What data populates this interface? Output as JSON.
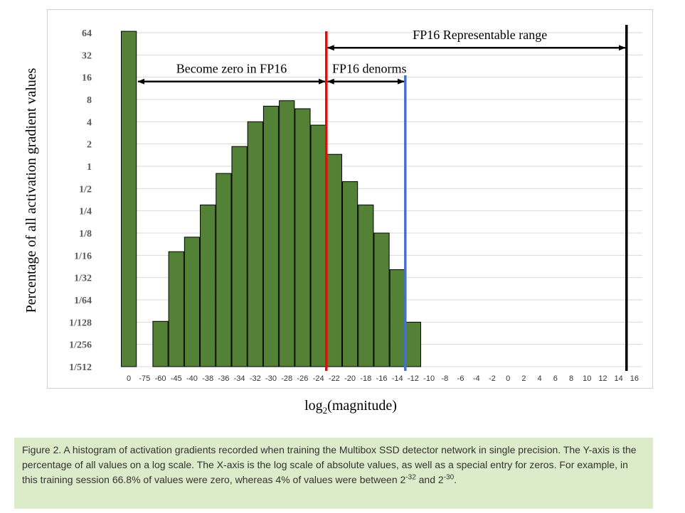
{
  "chart_data": {
    "type": "bar",
    "title": "",
    "xlabel_base": "log",
    "xlabel_sub": "2",
    "xlabel_rest": "(magnitude)",
    "ylabel": "Percentage of all activation gradient values",
    "y_scale": "log2",
    "y_ticks": [
      {
        "label": "64",
        "value": 64
      },
      {
        "label": "32",
        "value": 32
      },
      {
        "label": "16",
        "value": 16
      },
      {
        "label": "8",
        "value": 8
      },
      {
        "label": "4",
        "value": 4
      },
      {
        "label": "2",
        "value": 2
      },
      {
        "label": "1",
        "value": 1
      },
      {
        "label": "1/2",
        "value": 0.5
      },
      {
        "label": "1/4",
        "value": 0.25
      },
      {
        "label": "1/8",
        "value": 0.125
      },
      {
        "label": "1/16",
        "value": 0.0625
      },
      {
        "label": "1/32",
        "value": 0.03125
      },
      {
        "label": "1/64",
        "value": 0.015625
      },
      {
        "label": "1/128",
        "value": 0.0078125
      },
      {
        "label": "1/256",
        "value": 0.00390625
      },
      {
        "label": "1/512",
        "value": 0.001953125
      }
    ],
    "ylim": [
      0.001953125,
      64
    ],
    "categories": [
      "0",
      "-75",
      "-60",
      "-45",
      "-40",
      "-38",
      "-36",
      "-34",
      "-32",
      "-30",
      "-28",
      "-26",
      "-24",
      "-22",
      "-20",
      "-18",
      "-16",
      "-14",
      "-12",
      "-10",
      "-8",
      "-6",
      "-4",
      "-2",
      "0",
      "2",
      "4",
      "6",
      "8",
      "10",
      "12",
      "14",
      "16"
    ],
    "bar_color": "#538135",
    "bars": [
      {
        "category_index": 0,
        "value": 66.8
      },
      {
        "category_index": 2,
        "value": 0.008
      },
      {
        "category_index": 3,
        "value": 0.07
      },
      {
        "category_index": 4,
        "value": 0.11
      },
      {
        "category_index": 5,
        "value": 0.3
      },
      {
        "category_index": 6,
        "value": 0.8
      },
      {
        "category_index": 7,
        "value": 1.85
      },
      {
        "category_index": 8,
        "value": 4.0
      },
      {
        "category_index": 9,
        "value": 6.5
      },
      {
        "category_index": 10,
        "value": 7.7
      },
      {
        "category_index": 11,
        "value": 6.0
      },
      {
        "category_index": 12,
        "value": 3.6
      },
      {
        "category_index": 13,
        "value": 1.45
      },
      {
        "category_index": 14,
        "value": 0.62
      },
      {
        "category_index": 15,
        "value": 0.3
      },
      {
        "category_index": 16,
        "value": 0.125
      },
      {
        "category_index": 17,
        "value": 0.04
      },
      {
        "category_index": 18,
        "value": 0.0078
      }
    ],
    "vertical_lines": [
      {
        "name": "red",
        "at_index": 12.5,
        "color": "#ff0000"
      },
      {
        "name": "blue",
        "at_index": 17.5,
        "color": "#4472c4"
      },
      {
        "name": "black",
        "at_index": 31.5,
        "color": "#000000"
      }
    ],
    "annotations": [
      {
        "text": "FP16 Representable range",
        "from_index": 12.5,
        "to_index": 31.5,
        "y_value": 40
      },
      {
        "text": "Become zero in FP16",
        "from_index": 0.5,
        "to_index": 12.5,
        "y_value": 14
      },
      {
        "text": "FP16 denorms",
        "from_index": 12.5,
        "to_index": 17.5,
        "y_value": 14
      }
    ],
    "grid": true
  },
  "caption": {
    "text_main": "Figure 2. A histogram of activation gradients recorded when training the Multibox SSD detector network in single precision. The Y-axis is the percentage of all values on a log scale. The X-axis is the log scale of absolute values, as well as a special entry for zeros. For example, in this training session 66.8% of values were zero, whereas 4% of values were between 2",
    "exp1": "-32",
    "text_mid": " and 2",
    "exp2": "-30",
    "text_end": "."
  }
}
